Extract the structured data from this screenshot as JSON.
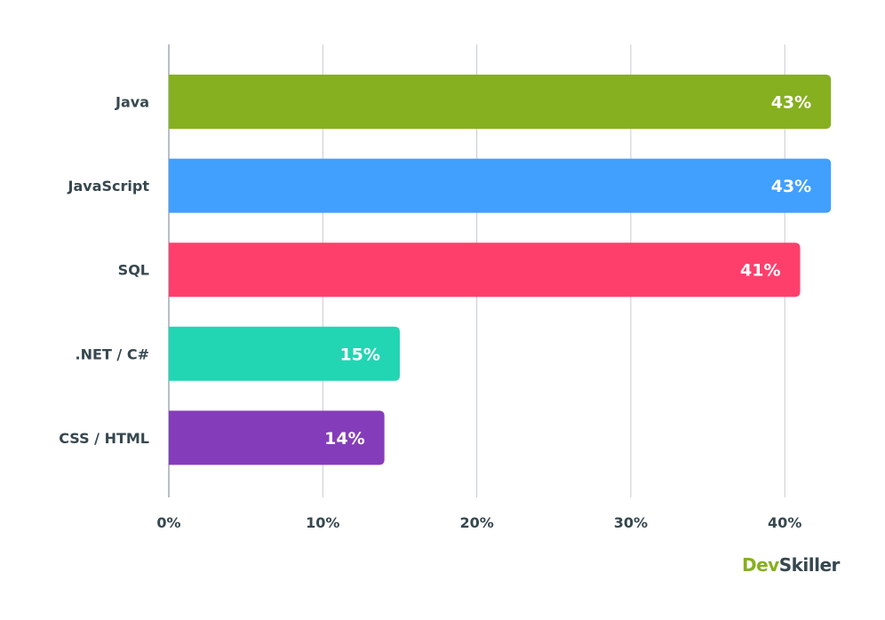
{
  "chart_data": {
    "type": "bar",
    "orientation": "horizontal",
    "categories": [
      "Java",
      "JavaScript",
      "SQL",
      ".NET / C#",
      "CSS / HTML"
    ],
    "values": [
      43,
      43,
      41,
      15,
      14
    ],
    "data_labels": [
      "43%",
      "43%",
      "41%",
      "15%",
      "14%"
    ],
    "colors": [
      "#86b01f",
      "#419ffe",
      "#fe3f6c",
      "#22d5b3",
      "#853cba"
    ],
    "x_ticks": [
      "0%",
      "10%",
      "20%",
      "30%",
      "40%"
    ],
    "xlim": [
      0,
      45
    ],
    "grid": true,
    "title": "",
    "xlabel": "",
    "ylabel": ""
  },
  "logo": {
    "part1": "Dev",
    "part2": "Skiller"
  }
}
